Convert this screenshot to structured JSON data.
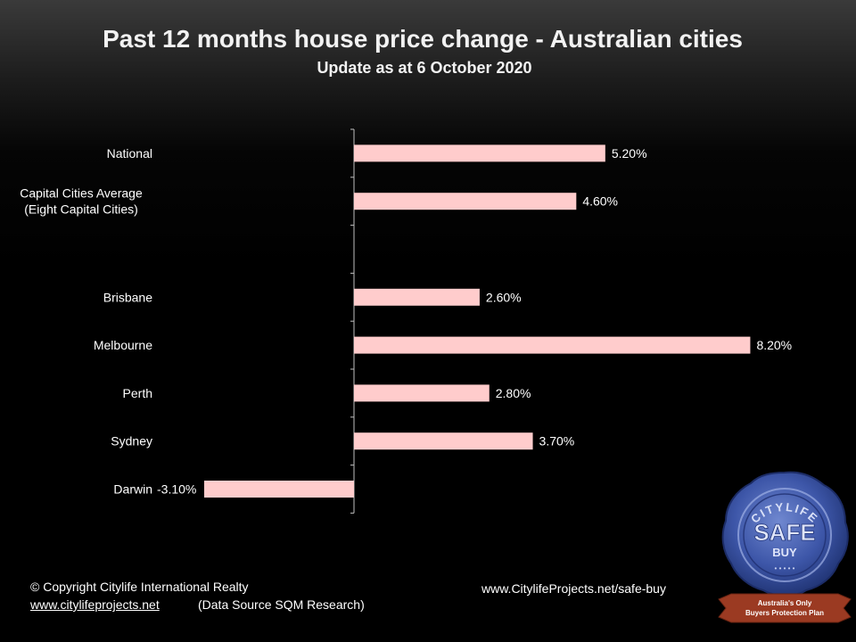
{
  "header": {
    "title": "Past 12 months house price change - Australian cities",
    "subtitle": "Update as at 6 October 2020"
  },
  "chart_data": {
    "type": "bar",
    "orientation": "horizontal",
    "categories": [
      [
        "National"
      ],
      [
        "Capital Cities Average",
        "(Eight Capital Cities)"
      ],
      [
        ""
      ],
      [
        "Brisbane"
      ],
      [
        "Melbourne"
      ],
      [
        "Perth"
      ],
      [
        "Sydney"
      ],
      [
        "Darwin"
      ]
    ],
    "values": [
      5.2,
      4.6,
      null,
      2.6,
      8.2,
      2.8,
      3.7,
      -3.1
    ],
    "data_labels": [
      "5.20%",
      "4.60%",
      "",
      "2.60%",
      "8.20%",
      "2.80%",
      "3.70%",
      "-3.10%"
    ],
    "bar_color": "#ffcccc",
    "axis_color": "#bfbfbf",
    "title": "Past 12 months house price change - Australian cities",
    "xlabel": "",
    "ylabel": "",
    "grid": false,
    "legend": "none"
  },
  "footer": {
    "copyright": "© Copyright Citylife International  Realty",
    "website_link": "www.citylifeprojects.net",
    "data_source": "(Data Source SQM Research)",
    "safe_buy_url": "www.CitylifeProjects.net/safe-buy"
  },
  "seal": {
    "arc_text": "CITYLIFE",
    "main_text": "SAFE",
    "sub_text": "BUY",
    "dots": "• • • • •",
    "ribbon_line1": "Australia's Only",
    "ribbon_line2": "Buyers Protection Plan",
    "colors": {
      "seal": "#3d56a8",
      "ribbon": "#9b3a22"
    }
  }
}
